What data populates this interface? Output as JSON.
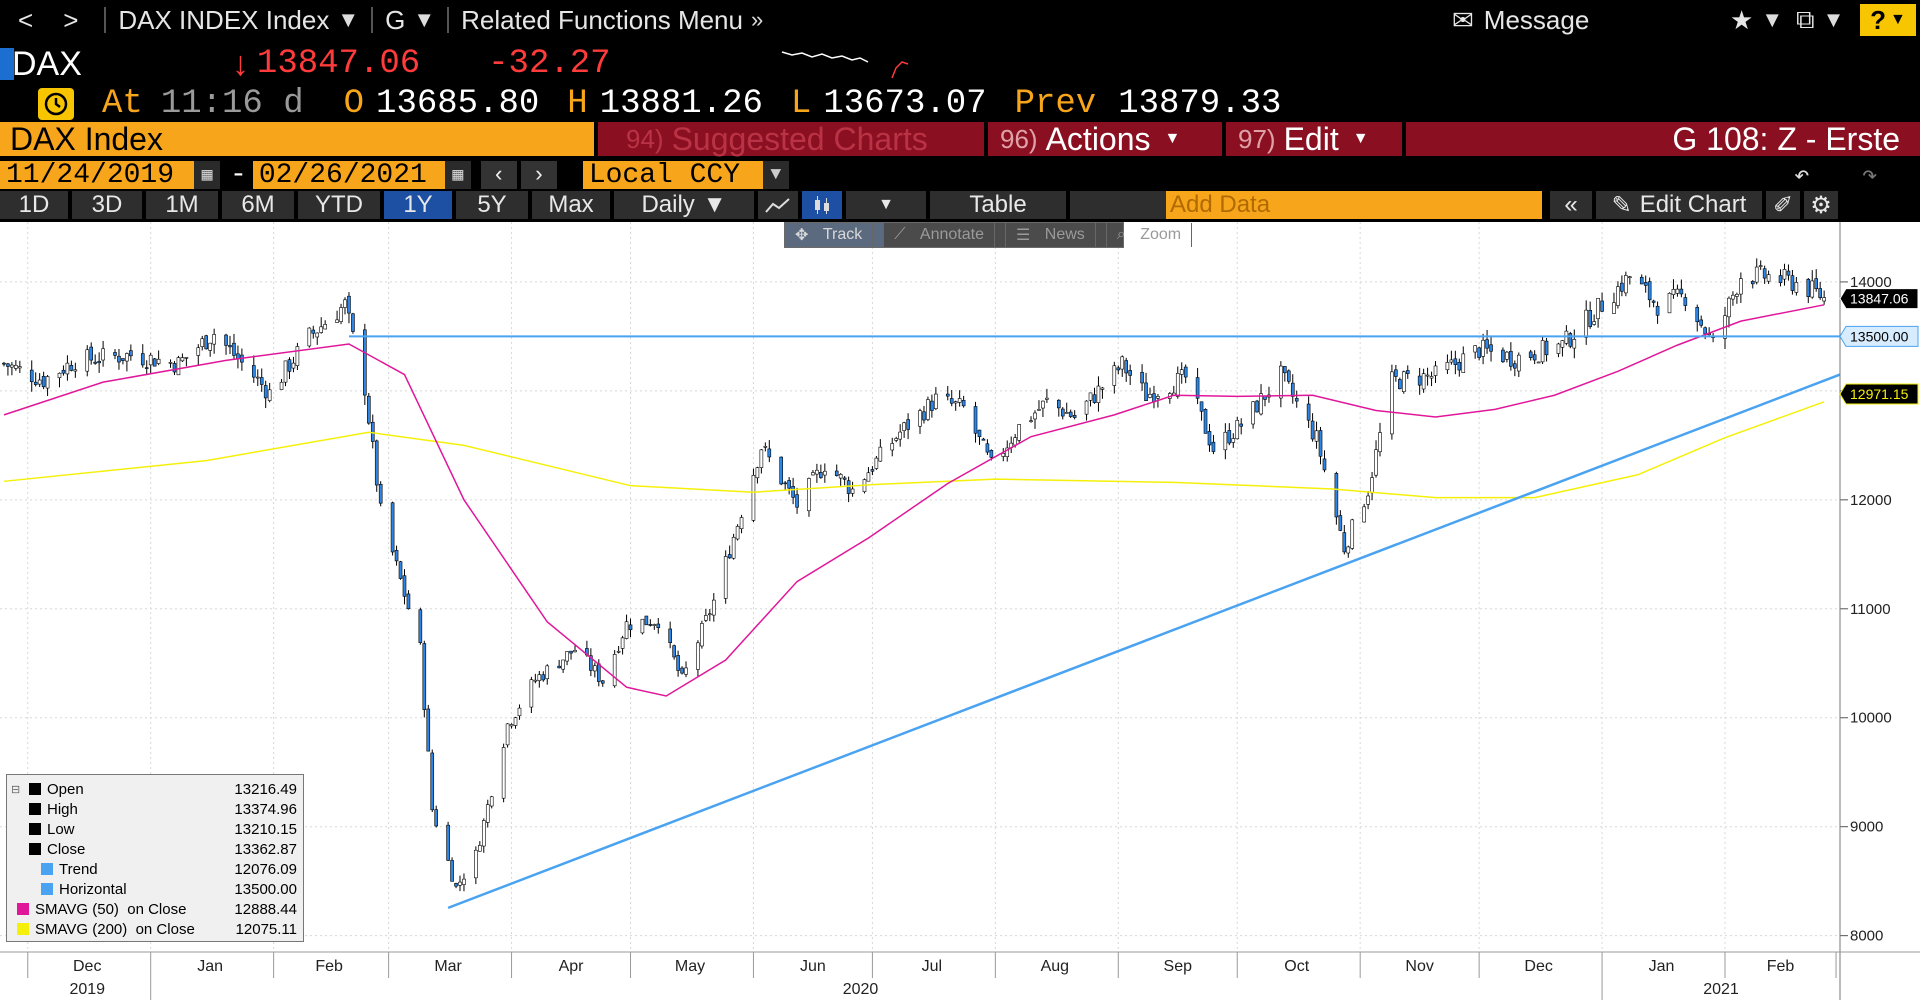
{
  "nav": {
    "back": "<",
    "forward": ">",
    "security": "DAX INDEX Index",
    "function": "G",
    "related": "Related Functions Menu",
    "message": "Message",
    "help": "?"
  },
  "ticker": {
    "name": "DAX",
    "arrow": "↓",
    "last": "13847.06",
    "change": "-32.27"
  },
  "quote": {
    "at_label": "At",
    "time": "11:16 d",
    "open_label": "O",
    "open": "13685.80",
    "high_label": "H",
    "high": "13881.26",
    "low_label": "L",
    "low": "13673.07",
    "prev_label": "Prev",
    "prev": "13879.33"
  },
  "secbar": {
    "name": "DAX Index",
    "suggest_num": "94)",
    "suggest": "Suggested Charts",
    "actions_num": "96)",
    "actions": "Actions",
    "edit_num": "97)",
    "edit": "Edit",
    "page": "G 108: Z - Erste"
  },
  "datebar": {
    "start": "11/24/2019",
    "dash": "-",
    "end": "02/26/2021",
    "currency": "Local CCY"
  },
  "toolbar": {
    "periods": [
      "1D",
      "3D",
      "1M",
      "6M",
      "YTD",
      "1Y",
      "5Y",
      "Max"
    ],
    "active_period": "1Y",
    "frequency": "Daily",
    "table": "Table",
    "add_data": "Add Data",
    "edit_chart": "Edit Chart"
  },
  "floatbar": {
    "track": "Track",
    "annotate": "Annotate",
    "news": "News",
    "zoom": "Zoom"
  },
  "legend": {
    "rows": [
      {
        "label": "Open",
        "value": "13216.49",
        "color": "#000000"
      },
      {
        "label": "High",
        "value": "13374.96",
        "color": "#000000"
      },
      {
        "label": "Low",
        "value": "13210.15",
        "color": "#000000"
      },
      {
        "label": "Close",
        "value": "13362.87",
        "color": "#000000"
      },
      {
        "label": "Trend",
        "value": "12076.09",
        "color": "#4aa3f0"
      },
      {
        "label": "Horizontal",
        "value": "13500.00",
        "color": "#4aa3f0"
      },
      {
        "label": "SMAVG (50)  on Close",
        "value": "12888.44",
        "color": "#e0179b"
      },
      {
        "label": "SMAVG (200)  on Close",
        "value": "12075.11",
        "color": "#f5f00a"
      }
    ]
  },
  "chart_data": {
    "type": "candlestick",
    "y_ticks": [
      8000,
      9000,
      10000,
      11000,
      12000,
      13000,
      14000
    ],
    "ylim": [
      7850,
      14550
    ],
    "x_month_labels": [
      "Dec",
      "Jan",
      "Feb",
      "Mar",
      "Apr",
      "May",
      "Jun",
      "Jul",
      "Aug",
      "Sep",
      "Oct",
      "Nov",
      "Dec",
      "Jan",
      "Feb"
    ],
    "x_year_labels": [
      "2019",
      "2020",
      "2021"
    ],
    "price_tags": [
      "13847.06",
      "13500.00",
      "12971.15"
    ],
    "colors": {
      "up": "#ffffff",
      "down": "#2b86e8",
      "sma50": "#e0179b",
      "sma200": "#f5f00a",
      "trend": "#4aa3f0",
      "horizontal": "#4aa3f0"
    },
    "horizontal_level": 13500,
    "trend_line": {
      "start": [
        "2020-03-16",
        8255
      ],
      "end": [
        "2021-02-26",
        13150
      ]
    },
    "close_path": [
      [
        "2019-11-25",
        13250
      ],
      [
        "2019-12-05",
        13100
      ],
      [
        "2019-12-13",
        13280
      ],
      [
        "2019-12-27",
        13330
      ],
      [
        "2020-01-08",
        13250
      ],
      [
        "2020-01-17",
        13530
      ],
      [
        "2020-01-31",
        12980
      ],
      [
        "2020-02-10",
        13500
      ],
      [
        "2020-02-19",
        13790
      ],
      [
        "2020-02-24",
        13030
      ],
      [
        "2020-02-28",
        11890
      ],
      [
        "2020-03-09",
        10630
      ],
      [
        "2020-03-12",
        9160
      ],
      [
        "2020-03-18",
        8440
      ],
      [
        "2020-03-23",
        8740
      ],
      [
        "2020-03-31",
        9940
      ],
      [
        "2020-04-07",
        10350
      ],
      [
        "2020-04-17",
        10630
      ],
      [
        "2020-04-24",
        10340
      ],
      [
        "2020-04-30",
        10860
      ],
      [
        "2020-05-08",
        10900
      ],
      [
        "2020-05-14",
        10340
      ],
      [
        "2020-05-22",
        11070
      ],
      [
        "2020-06-03",
        12490
      ],
      [
        "2020-06-12",
        11950
      ],
      [
        "2020-06-19",
        12330
      ],
      [
        "2020-06-26",
        12090
      ],
      [
        "2020-07-08",
        12620
      ],
      [
        "2020-07-17",
        12920
      ],
      [
        "2020-07-24",
        12840
      ],
      [
        "2020-07-31",
        12310
      ],
      [
        "2020-08-07",
        12670
      ],
      [
        "2020-08-14",
        12900
      ],
      [
        "2020-08-21",
        12760
      ],
      [
        "2020-09-02",
        13240
      ],
      [
        "2020-09-08",
        12960
      ],
      [
        "2020-09-18",
        13120
      ],
      [
        "2020-09-25",
        12470
      ],
      [
        "2020-10-02",
        12690
      ],
      [
        "2020-10-12",
        13140
      ],
      [
        "2020-10-21",
        12560
      ],
      [
        "2020-10-28",
        11560
      ],
      [
        "2020-11-03",
        12090
      ],
      [
        "2020-11-09",
        13090
      ],
      [
        "2020-11-20",
        13140
      ],
      [
        "2020-12-01",
        13380
      ],
      [
        "2020-12-10",
        13300
      ],
      [
        "2020-12-22",
        13420
      ],
      [
        "2020-12-30",
        13720
      ],
      [
        "2021-01-08",
        14050
      ],
      [
        "2021-01-15",
        13790
      ],
      [
        "2021-01-22",
        13870
      ],
      [
        "2021-01-29",
        13430
      ],
      [
        "2021-02-05",
        14060
      ],
      [
        "2021-02-12",
        14050
      ],
      [
        "2021-02-19",
        13990
      ],
      [
        "2021-02-25",
        13880
      ],
      [
        "2021-02-26",
        13847
      ]
    ],
    "sma50_path": [
      [
        "2019-11-25",
        12780
      ],
      [
        "2019-12-20",
        13080
      ],
      [
        "2020-01-20",
        13280
      ],
      [
        "2020-02-20",
        13430
      ],
      [
        "2020-03-05",
        13150
      ],
      [
        "2020-03-20",
        12000
      ],
      [
        "2020-04-10",
        10880
      ],
      [
        "2020-04-30",
        10280
      ],
      [
        "2020-05-10",
        10200
      ],
      [
        "2020-05-25",
        10530
      ],
      [
        "2020-06-12",
        11250
      ],
      [
        "2020-06-30",
        11650
      ],
      [
        "2020-07-20",
        12150
      ],
      [
        "2020-08-10",
        12580
      ],
      [
        "2020-08-31",
        12780
      ],
      [
        "2020-09-15",
        12960
      ],
      [
        "2020-10-01",
        12950
      ],
      [
        "2020-10-20",
        12960
      ],
      [
        "2020-11-05",
        12820
      ],
      [
        "2020-11-20",
        12760
      ],
      [
        "2020-12-05",
        12830
      ],
      [
        "2020-12-20",
        12960
      ],
      [
        "2021-01-05",
        13180
      ],
      [
        "2021-01-20",
        13420
      ],
      [
        "2021-02-05",
        13640
      ],
      [
        "2021-02-26",
        13790
      ]
    ],
    "sma200_path": [
      [
        "2019-11-25",
        12170
      ],
      [
        "2020-01-15",
        12360
      ],
      [
        "2020-02-25",
        12620
      ],
      [
        "2020-03-20",
        12500
      ],
      [
        "2020-05-01",
        12130
      ],
      [
        "2020-06-01",
        12070
      ],
      [
        "2020-07-01",
        12140
      ],
      [
        "2020-08-01",
        12190
      ],
      [
        "2020-09-15",
        12160
      ],
      [
        "2020-10-25",
        12100
      ],
      [
        "2020-11-20",
        12020
      ],
      [
        "2020-12-15",
        12020
      ],
      [
        "2021-01-10",
        12230
      ],
      [
        "2021-02-01",
        12570
      ],
      [
        "2021-02-26",
        12900
      ]
    ]
  }
}
